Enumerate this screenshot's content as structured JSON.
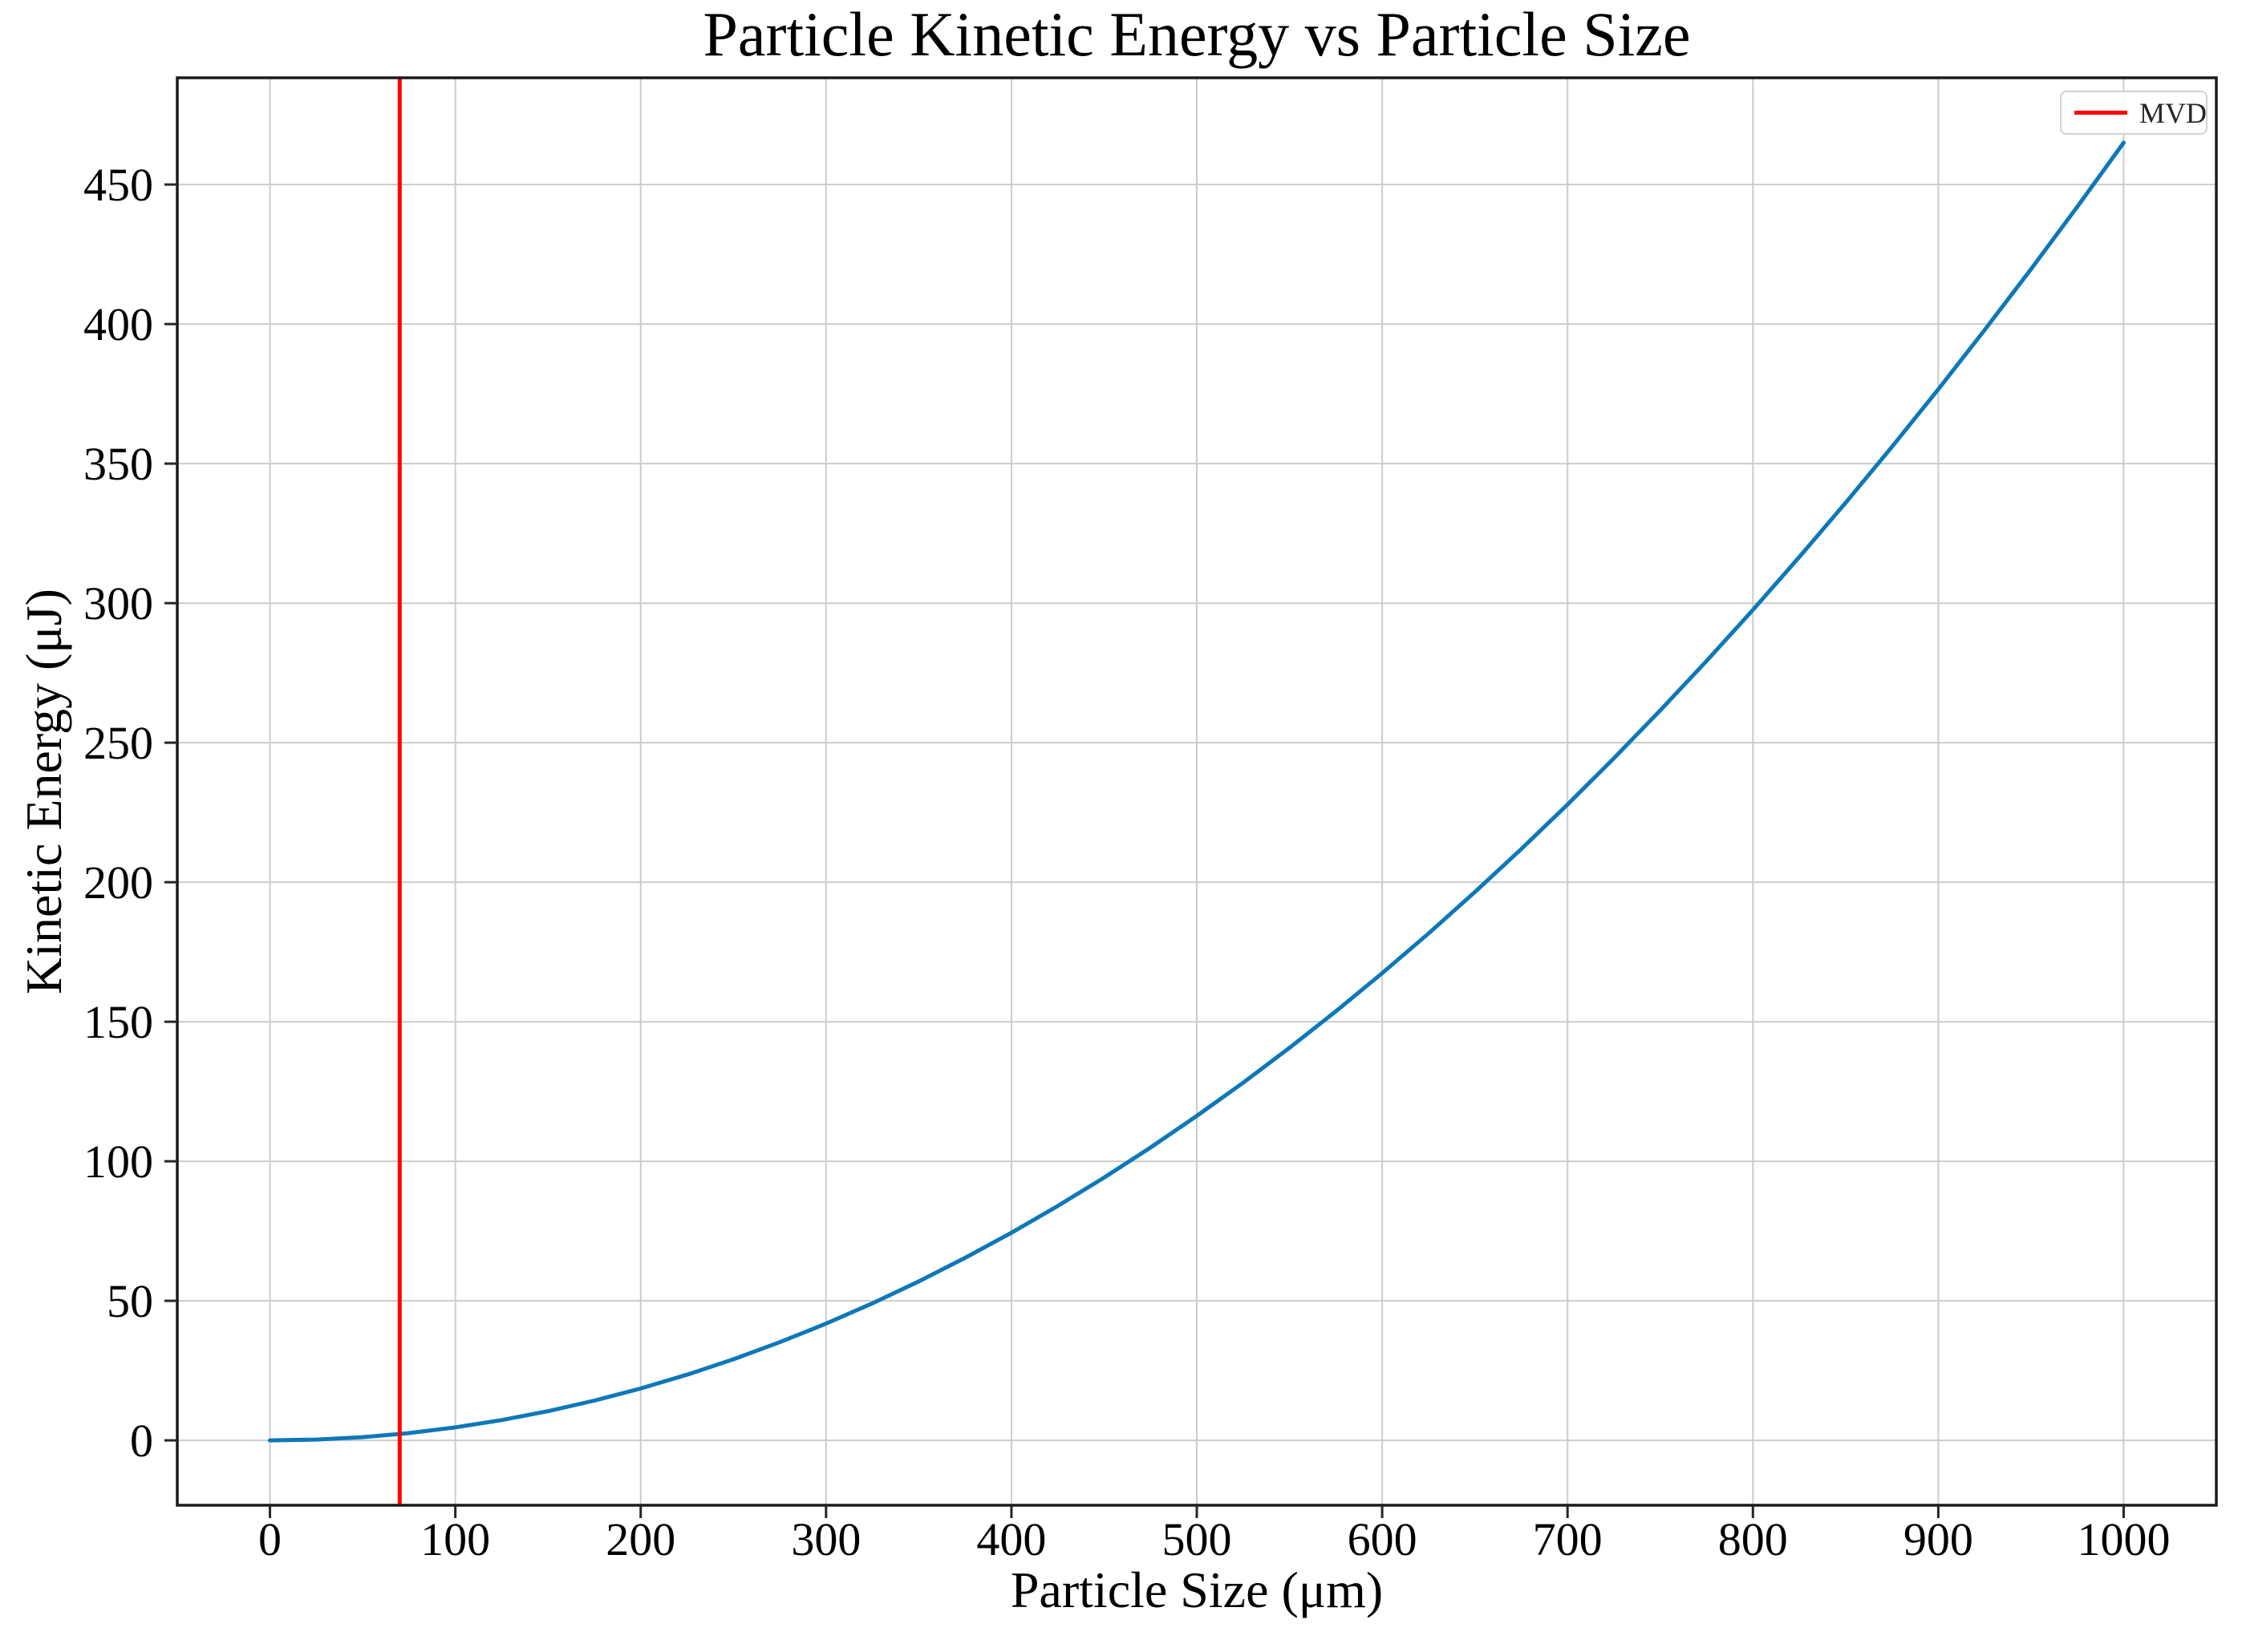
{
  "figure": {
    "background": "#ffffff"
  },
  "chart_data": {
    "type": "line",
    "title": "Particle Kinetic Energy vs Particle Size",
    "xlabel": "Particle Size (μm)",
    "ylabel": "Kinetic Energy (μJ)",
    "xlim": [
      -50,
      1050
    ],
    "ylim": [
      -23.25,
      488.25
    ],
    "xticks": [
      0,
      100,
      200,
      300,
      400,
      500,
      600,
      700,
      800,
      900,
      1000
    ],
    "yticks": [
      0,
      50,
      100,
      150,
      200,
      250,
      300,
      350,
      400,
      450
    ],
    "grid": true,
    "grid_color": "#cccccc",
    "spine_color": "#1a1a1a",
    "tick_color": "#262626",
    "legend": {
      "position": "upper right",
      "entries": [
        {
          "label": "MVD",
          "color": "#ff0000"
        }
      ]
    },
    "series": [
      {
        "name": "kinetic-energy-curve",
        "color": "#0d78b8",
        "x": [
          0,
          25,
          50,
          75,
          100,
          125,
          150,
          175,
          200,
          225,
          250,
          275,
          300,
          325,
          350,
          375,
          400,
          425,
          450,
          475,
          500,
          525,
          550,
          575,
          600,
          625,
          650,
          675,
          700,
          725,
          750,
          775,
          800,
          825,
          850,
          875,
          900,
          925,
          950,
          975,
          1000
        ],
        "y": [
          0,
          0.29,
          1.16,
          2.62,
          4.65,
          7.27,
          10.46,
          14.24,
          18.6,
          23.54,
          29.06,
          35.17,
          41.85,
          49.12,
          56.96,
          65.39,
          74.4,
          83.99,
          94.16,
          104.92,
          116.25,
          128.17,
          140.66,
          153.74,
          167.4,
          181.64,
          196.46,
          211.87,
          227.85,
          244.42,
          261.56,
          279.29,
          297.6,
          316.49,
          335.96,
          356.02,
          376.65,
          397.87,
          419.66,
          442.04,
          465.0
        ]
      }
    ],
    "vline": {
      "x": 70,
      "color": "#ff0000",
      "label": "MVD"
    }
  }
}
